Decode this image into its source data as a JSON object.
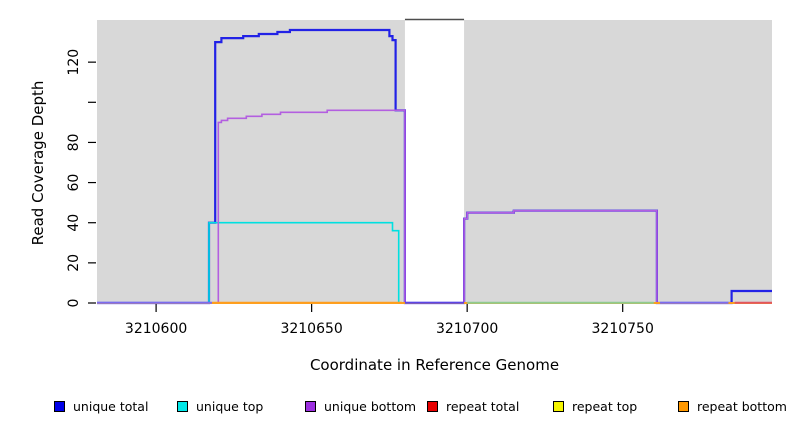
{
  "chart_data": {
    "type": "line",
    "subtype": "step-coverage",
    "title": "",
    "xlabel": "Coordinate in Reference Genome",
    "ylabel": "Read Coverage Depth",
    "xlim": [
      3210581,
      3210798
    ],
    "ylim": [
      0,
      141
    ],
    "grid": false,
    "legend_position": "bottom",
    "x_ticks": [
      3210600,
      3210650,
      3210700,
      3210750
    ],
    "x_tick_labels": [
      "3210600",
      "3210650",
      "3210700",
      "3210750"
    ],
    "y_ticks": [
      0,
      20,
      40,
      60,
      80,
      100,
      120
    ],
    "y_tick_labels": [
      "0",
      "20",
      "40",
      "60",
      "80",
      "",
      "120"
    ],
    "plot_background": "#ffffff",
    "shaded_regions": [
      {
        "x0": 3210581,
        "x1": 3210680,
        "color": "#d8d8d8"
      },
      {
        "x0": 3210699,
        "x1": 3210798,
        "color": "#d8d8d8"
      }
    ],
    "gap_top_border": {
      "x0": 3210680,
      "x1": 3210699,
      "color": "#4d4d4d"
    },
    "series": [
      {
        "name": "unique total",
        "color": "#2222e6",
        "width": 2.2,
        "points": [
          [
            3210581,
            0
          ],
          [
            3210617,
            0
          ],
          [
            3210617,
            40
          ],
          [
            3210619,
            40
          ],
          [
            3210619,
            130
          ],
          [
            3210621,
            130
          ],
          [
            3210621,
            132
          ],
          [
            3210628,
            132
          ],
          [
            3210628,
            133
          ],
          [
            3210633,
            133
          ],
          [
            3210633,
            134
          ],
          [
            3210639,
            134
          ],
          [
            3210639,
            135
          ],
          [
            3210643,
            135
          ],
          [
            3210643,
            136
          ],
          [
            3210675,
            136
          ],
          [
            3210675,
            133
          ],
          [
            3210676,
            133
          ],
          [
            3210676,
            131
          ],
          [
            3210677,
            131
          ],
          [
            3210677,
            96
          ],
          [
            3210680,
            96
          ],
          [
            3210680,
            0
          ],
          [
            3210699,
            0
          ],
          [
            3210699,
            42
          ],
          [
            3210700,
            42
          ],
          [
            3210700,
            45
          ],
          [
            3210715,
            45
          ],
          [
            3210715,
            46
          ],
          [
            3210761,
            46
          ],
          [
            3210761,
            0
          ],
          [
            3210785,
            0
          ],
          [
            3210785,
            6
          ],
          [
            3210798,
            6
          ]
        ]
      },
      {
        "name": "unique top",
        "color": "#00e0e0",
        "width": 1.6,
        "points": [
          [
            3210581,
            0
          ],
          [
            3210617,
            0
          ],
          [
            3210617,
            40
          ],
          [
            3210676,
            40
          ],
          [
            3210676,
            36
          ],
          [
            3210678,
            36
          ],
          [
            3210678,
            0
          ],
          [
            3210798,
            0
          ]
        ]
      },
      {
        "name": "unique bottom",
        "color": "#b35fe0",
        "width": 1.6,
        "points": [
          [
            3210581,
            0
          ],
          [
            3210620,
            0
          ],
          [
            3210620,
            90
          ],
          [
            3210621,
            90
          ],
          [
            3210621,
            91
          ],
          [
            3210623,
            91
          ],
          [
            3210623,
            92
          ],
          [
            3210629,
            92
          ],
          [
            3210629,
            93
          ],
          [
            3210634,
            93
          ],
          [
            3210634,
            94
          ],
          [
            3210640,
            94
          ],
          [
            3210640,
            95
          ],
          [
            3210655,
            95
          ],
          [
            3210655,
            96
          ],
          [
            3210680,
            96
          ],
          [
            3210680,
            0
          ],
          [
            3210699,
            0
          ],
          [
            3210699,
            42
          ],
          [
            3210700,
            42
          ],
          [
            3210700,
            45
          ],
          [
            3210715,
            45
          ],
          [
            3210715,
            46
          ],
          [
            3210761,
            46
          ],
          [
            3210761,
            0
          ],
          [
            3210798,
            0
          ]
        ]
      },
      {
        "name": "repeat total",
        "color": "#e03030",
        "width": 1.6,
        "points": [
          [
            3210581,
            0
          ],
          [
            3210798,
            0
          ]
        ]
      },
      {
        "name": "repeat top",
        "color": "#f0f000",
        "width": 1.6,
        "points": [
          [
            3210581,
            0
          ],
          [
            3210798,
            0
          ]
        ]
      },
      {
        "name": "repeat bottom",
        "color": "#ff9d1c",
        "width": 1.8,
        "points": [
          [
            3210581,
            0
          ],
          [
            3210798,
            0
          ]
        ]
      }
    ],
    "baseline_segments": [
      {
        "x0": 3210581,
        "x1": 3210618,
        "color": "#7b6cf0"
      },
      {
        "x0": 3210618,
        "x1": 3210679,
        "color": "#ff9d1c"
      },
      {
        "x0": 3210680,
        "x1": 3210699,
        "color": "#5b46e6"
      },
      {
        "x0": 3210700,
        "x1": 3210760,
        "color": "#8fcb8f"
      },
      {
        "x0": 3210762,
        "x1": 3210784,
        "color": "#7b6cf0"
      },
      {
        "x0": 3210786,
        "x1": 3210798,
        "color": "#e2555f"
      }
    ],
    "legend": [
      {
        "label": "unique total",
        "color": "#0000e8"
      },
      {
        "label": "unique top",
        "color": "#00e8e8"
      },
      {
        "label": "unique bottom",
        "color": "#9c2fe0"
      },
      {
        "label": "repeat total",
        "color": "#e80000"
      },
      {
        "label": "repeat top",
        "color": "#f5f500"
      },
      {
        "label": "repeat bottom",
        "color": "#ff9800"
      }
    ]
  }
}
